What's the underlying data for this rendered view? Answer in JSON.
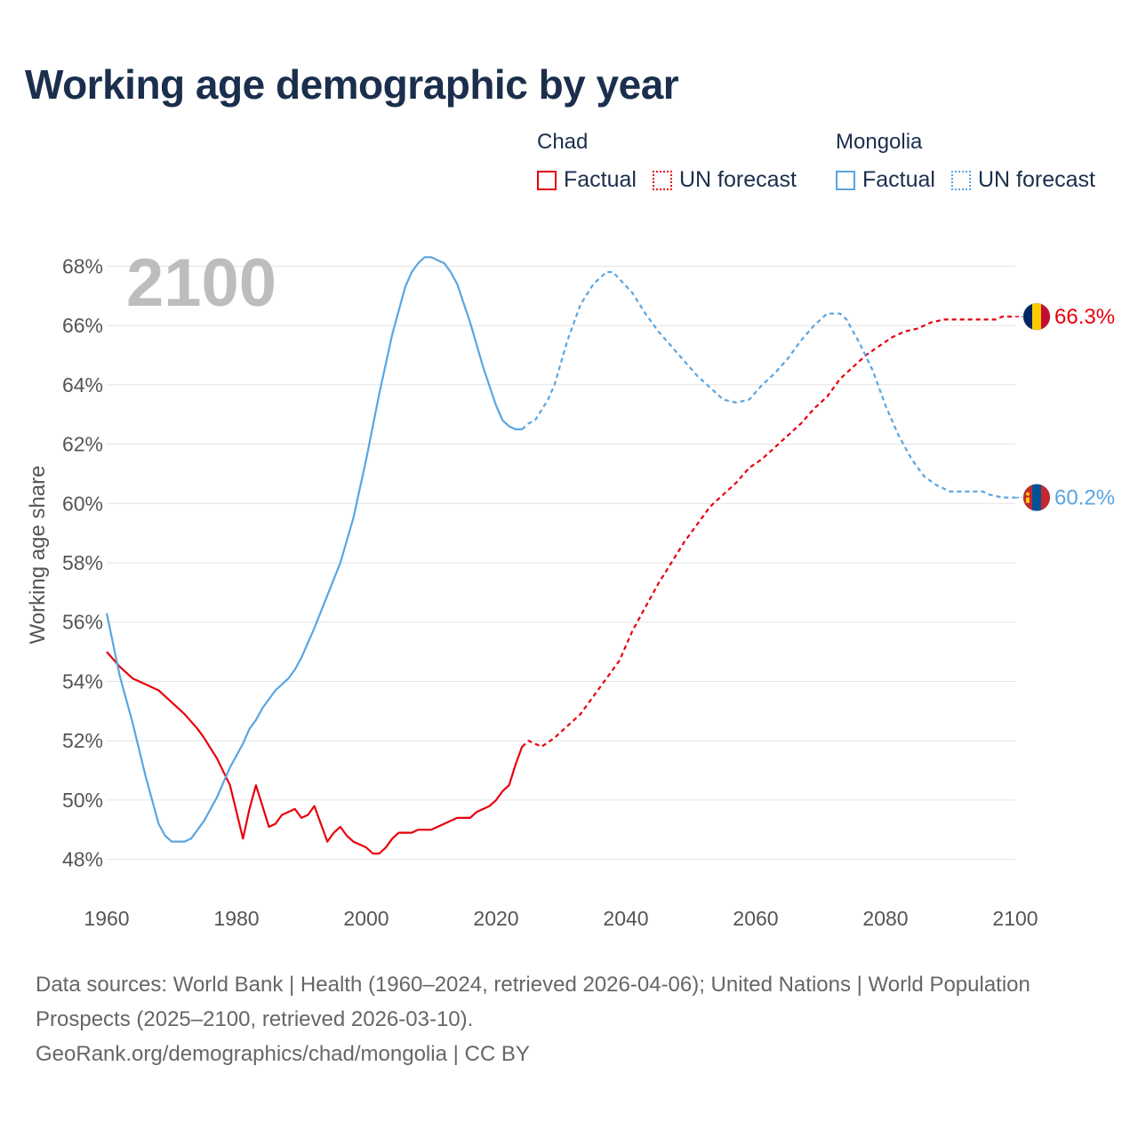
{
  "title": "Working age demographic by year",
  "year_overlay": "2100",
  "legend": {
    "groups": [
      {
        "name": "Chad",
        "color": "#e8000b",
        "factual_label": "Factual",
        "forecast_label": "UN forecast"
      },
      {
        "name": "Mongolia",
        "color": "#5aa5e0",
        "factual_label": "Factual",
        "forecast_label": "UN forecast"
      }
    ]
  },
  "footer": {
    "sources": "Data sources: World Bank | Health (1960–2024, retrieved 2026-04-06); United Nations | World Population Prospects (2025–2100, retrieved 2026-03-10).",
    "credit": "GeoRank.org/demographics/chad/mongolia | CC BY"
  },
  "chart_data": {
    "type": "line",
    "title": "Working age demographic by year",
    "xlabel": "",
    "ylabel": "Working age share",
    "xlim": [
      1960,
      2100
    ],
    "ylim": [
      47.6,
      68.4
    ],
    "x_ticks": [
      1960,
      1980,
      2000,
      2020,
      2040,
      2060,
      2080,
      2100
    ],
    "y_ticks": [
      48,
      50,
      52,
      54,
      56,
      58,
      60,
      62,
      64,
      66,
      68
    ],
    "y_tick_labels": [
      "48%",
      "50%",
      "52%",
      "54%",
      "56%",
      "58%",
      "60%",
      "62%",
      "64%",
      "66%",
      "68%"
    ],
    "grid": true,
    "factual_end_year": 2024,
    "series": [
      {
        "name": "Chad",
        "color": "#e8000b",
        "end_label": "66.3%",
        "points": [
          [
            1960,
            55.0
          ],
          [
            1962,
            54.5
          ],
          [
            1964,
            54.1
          ],
          [
            1966,
            53.9
          ],
          [
            1968,
            53.7
          ],
          [
            1970,
            53.3
          ],
          [
            1972,
            52.9
          ],
          [
            1974,
            52.4
          ],
          [
            1975,
            52.1
          ],
          [
            1977,
            51.4
          ],
          [
            1979,
            50.5
          ],
          [
            1981,
            48.7
          ],
          [
            1982,
            49.7
          ],
          [
            1983,
            50.5
          ],
          [
            1985,
            49.1
          ],
          [
            1986,
            49.2
          ],
          [
            1987,
            49.5
          ],
          [
            1989,
            49.7
          ],
          [
            1990,
            49.4
          ],
          [
            1991,
            49.5
          ],
          [
            1992,
            49.8
          ],
          [
            1994,
            48.6
          ],
          [
            1995,
            48.9
          ],
          [
            1996,
            49.1
          ],
          [
            1997,
            48.8
          ],
          [
            1998,
            48.6
          ],
          [
            2000,
            48.4
          ],
          [
            2001,
            48.2
          ],
          [
            2002,
            48.2
          ],
          [
            2003,
            48.4
          ],
          [
            2004,
            48.7
          ],
          [
            2005,
            48.9
          ],
          [
            2007,
            48.9
          ],
          [
            2008,
            49.0
          ],
          [
            2010,
            49.0
          ],
          [
            2012,
            49.2
          ],
          [
            2014,
            49.4
          ],
          [
            2016,
            49.4
          ],
          [
            2017,
            49.6
          ],
          [
            2019,
            49.8
          ],
          [
            2020,
            50.0
          ],
          [
            2021,
            50.3
          ],
          [
            2022,
            50.5
          ],
          [
            2023,
            51.2
          ],
          [
            2024,
            51.8
          ],
          [
            2025,
            52.0
          ],
          [
            2027,
            51.8
          ],
          [
            2029,
            52.1
          ],
          [
            2031,
            52.5
          ],
          [
            2033,
            52.9
          ],
          [
            2035,
            53.5
          ],
          [
            2037,
            54.1
          ],
          [
            2039,
            54.7
          ],
          [
            2041,
            55.7
          ],
          [
            2043,
            56.5
          ],
          [
            2045,
            57.3
          ],
          [
            2047,
            58.0
          ],
          [
            2049,
            58.7
          ],
          [
            2051,
            59.3
          ],
          [
            2053,
            59.9
          ],
          [
            2055,
            60.3
          ],
          [
            2057,
            60.7
          ],
          [
            2059,
            61.2
          ],
          [
            2061,
            61.5
          ],
          [
            2063,
            61.9
          ],
          [
            2065,
            62.3
          ],
          [
            2067,
            62.7
          ],
          [
            2069,
            63.2
          ],
          [
            2071,
            63.6
          ],
          [
            2073,
            64.2
          ],
          [
            2075,
            64.6
          ],
          [
            2077,
            65.0
          ],
          [
            2079,
            65.3
          ],
          [
            2081,
            65.6
          ],
          [
            2083,
            65.8
          ],
          [
            2085,
            65.9
          ],
          [
            2087,
            66.1
          ],
          [
            2089,
            66.2
          ],
          [
            2092,
            66.2
          ],
          [
            2095,
            66.2
          ],
          [
            2097,
            66.2
          ],
          [
            2098,
            66.3
          ],
          [
            2100,
            66.3
          ]
        ]
      },
      {
        "name": "Mongolia",
        "color": "#5aa5e0",
        "end_label": "60.2%",
        "points": [
          [
            1960,
            56.3
          ],
          [
            1962,
            54.2
          ],
          [
            1964,
            52.6
          ],
          [
            1966,
            50.8
          ],
          [
            1968,
            49.2
          ],
          [
            1969,
            48.8
          ],
          [
            1970,
            48.6
          ],
          [
            1972,
            48.6
          ],
          [
            1973,
            48.7
          ],
          [
            1975,
            49.3
          ],
          [
            1977,
            50.1
          ],
          [
            1979,
            51.1
          ],
          [
            1981,
            51.9
          ],
          [
            1982,
            52.4
          ],
          [
            1983,
            52.7
          ],
          [
            1984,
            53.1
          ],
          [
            1986,
            53.7
          ],
          [
            1988,
            54.1
          ],
          [
            1989,
            54.4
          ],
          [
            1990,
            54.8
          ],
          [
            1992,
            55.8
          ],
          [
            1994,
            56.9
          ],
          [
            1996,
            58.0
          ],
          [
            1998,
            59.5
          ],
          [
            2000,
            61.5
          ],
          [
            2002,
            63.7
          ],
          [
            2004,
            65.7
          ],
          [
            2006,
            67.3
          ],
          [
            2007,
            67.8
          ],
          [
            2008,
            68.1
          ],
          [
            2009,
            68.3
          ],
          [
            2010,
            68.3
          ],
          [
            2011,
            68.2
          ],
          [
            2012,
            68.1
          ],
          [
            2013,
            67.8
          ],
          [
            2014,
            67.4
          ],
          [
            2016,
            66.1
          ],
          [
            2018,
            64.6
          ],
          [
            2020,
            63.3
          ],
          [
            2021,
            62.8
          ],
          [
            2022,
            62.6
          ],
          [
            2023,
            62.5
          ],
          [
            2024,
            62.5
          ],
          [
            2025,
            62.7
          ],
          [
            2026,
            62.8
          ],
          [
            2028,
            63.5
          ],
          [
            2029,
            64.0
          ],
          [
            2031,
            65.5
          ],
          [
            2033,
            66.7
          ],
          [
            2035,
            67.4
          ],
          [
            2037,
            67.8
          ],
          [
            2038,
            67.8
          ],
          [
            2041,
            67.1
          ],
          [
            2043,
            66.4
          ],
          [
            2045,
            65.8
          ],
          [
            2047,
            65.3
          ],
          [
            2049,
            64.8
          ],
          [
            2051,
            64.3
          ],
          [
            2053,
            63.9
          ],
          [
            2055,
            63.5
          ],
          [
            2057,
            63.4
          ],
          [
            2059,
            63.5
          ],
          [
            2061,
            64.0
          ],
          [
            2063,
            64.4
          ],
          [
            2065,
            64.9
          ],
          [
            2067,
            65.5
          ],
          [
            2069,
            66.0
          ],
          [
            2071,
            66.4
          ],
          [
            2073,
            66.4
          ],
          [
            2074,
            66.2
          ],
          [
            2076,
            65.4
          ],
          [
            2078,
            64.5
          ],
          [
            2080,
            63.3
          ],
          [
            2082,
            62.3
          ],
          [
            2084,
            61.5
          ],
          [
            2086,
            60.9
          ],
          [
            2088,
            60.6
          ],
          [
            2090,
            60.4
          ],
          [
            2092,
            60.4
          ],
          [
            2095,
            60.4
          ],
          [
            2096,
            60.3
          ],
          [
            2098,
            60.2
          ],
          [
            2100,
            60.2
          ]
        ]
      }
    ]
  }
}
